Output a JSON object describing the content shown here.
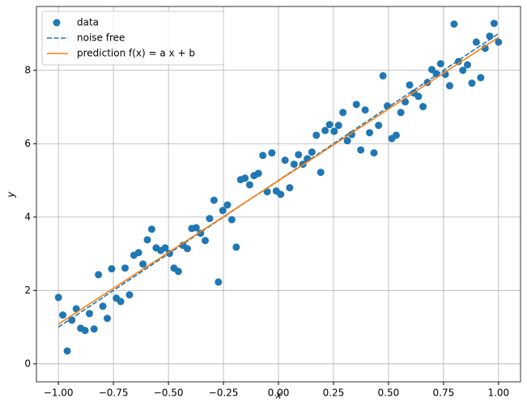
{
  "chart_data": {
    "type": "scatter",
    "xlabel": "x",
    "ylabel": "y",
    "xlim": [
      -1.1,
      1.1
    ],
    "ylim": [
      -0.49,
      9.74
    ],
    "xticks": [
      {
        "value": -1,
        "label": "−1.00"
      },
      {
        "value": -0.75,
        "label": "−0.75"
      },
      {
        "value": -0.5,
        "label": "−0.50"
      },
      {
        "value": -0.25,
        "label": "−0.25"
      },
      {
        "value": 0,
        "label": "0.00"
      },
      {
        "value": 0.25,
        "label": "0.25"
      },
      {
        "value": 0.5,
        "label": "0.50"
      },
      {
        "value": 0.75,
        "label": "0.75"
      },
      {
        "value": 1,
        "label": "1.00"
      }
    ],
    "yticks": [
      0,
      2,
      4,
      6,
      8
    ],
    "grid": true,
    "legend": "upper left",
    "series": [
      {
        "name": "data",
        "kind": "scatter",
        "color": "#1f77b4",
        "x": [
          -1,
          -0.98,
          -0.96,
          -0.939,
          -0.919,
          -0.899,
          -0.879,
          -0.859,
          -0.838,
          -0.818,
          -0.798,
          -0.778,
          -0.758,
          -0.737,
          -0.717,
          -0.697,
          -0.677,
          -0.657,
          -0.636,
          -0.616,
          -0.596,
          -0.576,
          -0.556,
          -0.535,
          -0.515,
          -0.495,
          -0.475,
          -0.455,
          -0.434,
          -0.414,
          -0.394,
          -0.374,
          -0.354,
          -0.333,
          -0.313,
          -0.293,
          -0.273,
          -0.253,
          -0.232,
          -0.212,
          -0.192,
          -0.172,
          -0.152,
          -0.131,
          -0.111,
          -0.091,
          -0.071,
          -0.051,
          -0.03,
          -0.01,
          0.01,
          0.03,
          0.051,
          0.071,
          0.091,
          0.111,
          0.131,
          0.152,
          0.172,
          0.192,
          0.212,
          0.232,
          0.253,
          0.273,
          0.293,
          0.313,
          0.333,
          0.354,
          0.374,
          0.394,
          0.414,
          0.434,
          0.455,
          0.475,
          0.495,
          0.515,
          0.535,
          0.556,
          0.576,
          0.596,
          0.616,
          0.636,
          0.657,
          0.677,
          0.697,
          0.717,
          0.737,
          0.758,
          0.778,
          0.798,
          0.818,
          0.838,
          0.859,
          0.879,
          0.899,
          0.919,
          0.939,
          0.96,
          0.98,
          1
        ],
        "values": [
          1.81,
          1.33,
          0.35,
          1.19,
          1.5,
          0.97,
          0.91,
          1.37,
          0.95,
          2.43,
          1.57,
          1.24,
          2.59,
          1.79,
          1.7,
          2.61,
          1.88,
          2.96,
          3.03,
          2.72,
          3.38,
          3.67,
          3.16,
          3.09,
          3.16,
          3.01,
          2.61,
          2.52,
          3.23,
          3.14,
          3.69,
          3.71,
          3.56,
          3.36,
          3.96,
          4.46,
          2.23,
          4.18,
          4.33,
          3.93,
          3.18,
          5.02,
          5.06,
          4.88,
          5.13,
          5.19,
          5.68,
          4.69,
          5.75,
          4.71,
          4.62,
          5.55,
          4.8,
          5.44,
          5.7,
          5.44,
          5.59,
          5.77,
          6.23,
          5.22,
          6.36,
          6.52,
          6.34,
          6.5,
          6.85,
          6.08,
          6.25,
          7.07,
          5.83,
          6.92,
          6.3,
          5.75,
          6.5,
          7.85,
          7.03,
          6.14,
          6.23,
          6.85,
          7.14,
          7.6,
          7.38,
          7.29,
          7.01,
          7.67,
          8.02,
          7.91,
          8.18,
          7.89,
          7.58,
          9.26,
          8.24,
          8.0,
          8.15,
          7.65,
          8.77,
          7.8,
          8.6,
          8.93,
          9.28,
          8.77
        ]
      },
      {
        "name": "noise free",
        "kind": "dashed",
        "color": "#1f77b4",
        "x": [
          -1,
          1
        ],
        "values": [
          1,
          9
        ]
      },
      {
        "name": "prediction f(x) = a x + b",
        "kind": "line",
        "color": "#ff7f0e",
        "x": [
          -1,
          1
        ],
        "values": [
          1.08,
          8.9
        ]
      }
    ]
  }
}
